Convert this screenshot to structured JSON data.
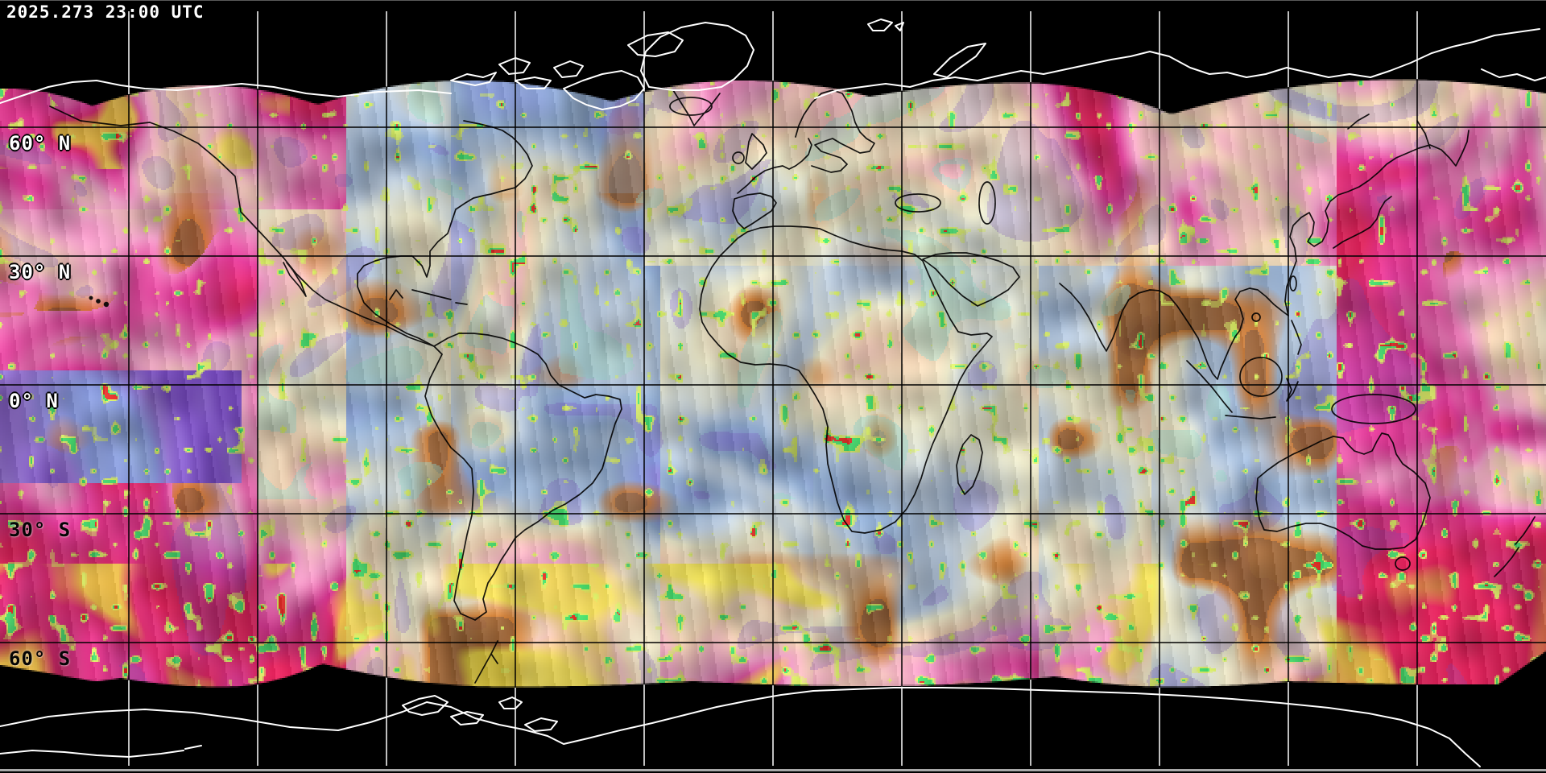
{
  "header": {
    "timestamp": "2025.273 23:00 UTC"
  },
  "graticule": {
    "lat_interval_deg": 30,
    "lon_interval_deg": 30,
    "labels": [
      {
        "text": "60° N",
        "lat": 60,
        "theme": "north"
      },
      {
        "text": "30° N",
        "lat": 30,
        "theme": "north"
      },
      {
        "text": "0° N",
        "lat": 0,
        "theme": "north"
      },
      {
        "text": "30° S",
        "lat": -30,
        "theme": "south"
      },
      {
        "text": "60° S",
        "lat": -60,
        "theme": "south"
      }
    ]
  },
  "map_colors": {
    "background": "#000000",
    "grid_on_imagery": "#000000",
    "grid_on_space": "#ffffff",
    "coastline_on_imagery": "#000000",
    "coastline_polar": "#ffffff",
    "label_north": "#ffffff",
    "label_south": "#050505",
    "bottom_border": "#a9a9a9",
    "palette": [
      "#7a4fc0",
      "#9a78d8",
      "#8a9ade",
      "#93aed2",
      "#bcccde",
      "#e9e6c8",
      "#f0d2b4",
      "#ee9ec6",
      "#e03f9a",
      "#e0285f"
    ],
    "accents": {
      "orange": "#cf7222",
      "brown": "#9a5a28",
      "yellow_green": "#d9ee66",
      "green": "#46e470",
      "yellow": "#f0e448",
      "red": "#e83028",
      "teal": "#9ad8cc"
    }
  }
}
